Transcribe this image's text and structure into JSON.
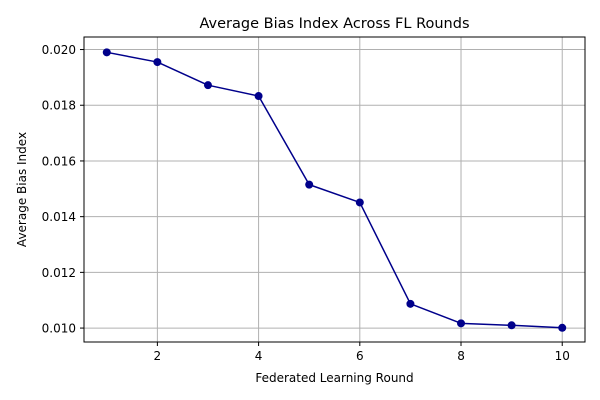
{
  "chart_data": {
    "type": "line",
    "title": "Average Bias Index Across FL Rounds",
    "xlabel": "Federated Learning Round",
    "ylabel": "Average Bias Index",
    "xlim": [
      0.55,
      10.45
    ],
    "ylim": [
      0.0095,
      0.02045
    ],
    "xticks": [
      2,
      4,
      6,
      8,
      10
    ],
    "yticks": [
      0.01,
      0.012,
      0.014,
      0.016,
      0.018,
      0.02
    ],
    "xtick_labels": [
      "2",
      "4",
      "6",
      "8",
      "10"
    ],
    "ytick_labels": [
      "0.010",
      "0.012",
      "0.014",
      "0.016",
      "0.018",
      "0.020"
    ],
    "grid": true,
    "series": [
      {
        "x": [
          1,
          2,
          3,
          4,
          5,
          6,
          7,
          8,
          9,
          10
        ],
        "values": [
          0.0199,
          0.01955,
          0.01872,
          0.01833,
          0.01515,
          0.01451,
          0.01087,
          0.01017,
          0.0101,
          0.01001
        ],
        "color": "#00008b",
        "marker": "circle"
      }
    ]
  }
}
